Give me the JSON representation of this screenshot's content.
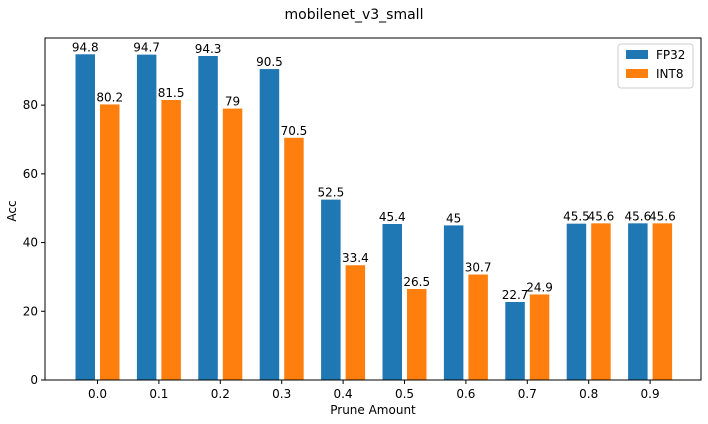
{
  "chart_data": {
    "type": "bar",
    "title": "mobilenet_v3_small",
    "xlabel": "Prune Amount",
    "ylabel": "Acc",
    "categories": [
      "0.0",
      "0.1",
      "0.2",
      "0.3",
      "0.4",
      "0.5",
      "0.6",
      "0.7",
      "0.8",
      "0.9"
    ],
    "series": [
      {
        "name": "FP32",
        "color": "#1f77b4",
        "values": [
          94.8,
          94.7,
          94.3,
          90.5,
          52.5,
          45.4,
          45,
          22.7,
          45.5,
          45.6
        ]
      },
      {
        "name": "INT8",
        "color": "#ff7f0e",
        "values": [
          80.2,
          81.5,
          79,
          70.5,
          33.4,
          26.5,
          30.7,
          24.9,
          45.6,
          45.6
        ]
      }
    ],
    "ylim": [
      0,
      99.54
    ],
    "yticks": [
      "0",
      "20",
      "40",
      "60",
      "80"
    ],
    "grid": false,
    "legend_position": "top-right"
  }
}
